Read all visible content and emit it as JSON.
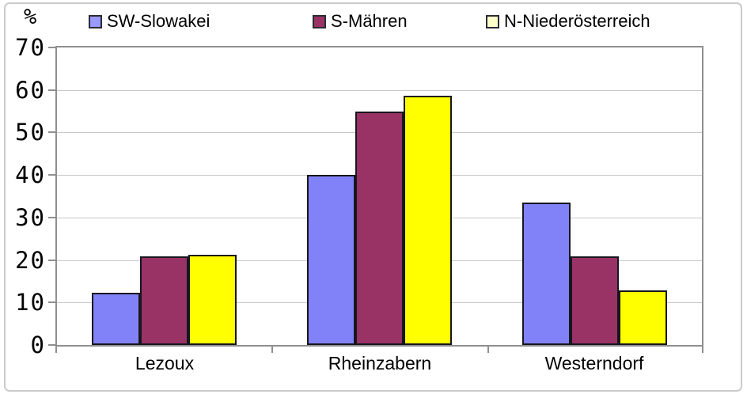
{
  "chart_data": {
    "type": "bar",
    "title": "",
    "ylabel": "%",
    "xlabel": "",
    "categories": [
      "Lezoux",
      "Rheinzabern",
      "Westerndorf"
    ],
    "series": [
      {
        "name": "SW-Slowakei",
        "values": [
          12.3,
          40.1,
          33.5
        ],
        "bar_color": "#8282F8",
        "legend_color": "#9999FF"
      },
      {
        "name": "S-Mähren",
        "values": [
          20.9,
          54.9,
          20.9
        ],
        "bar_color": "#993366",
        "legend_color": "#993366"
      },
      {
        "name": "N-Niederösterreich",
        "values": [
          21.2,
          58.6,
          12.9
        ],
        "bar_color": "#FFFF00",
        "legend_color": "#FFFFCC"
      }
    ],
    "ylim": [
      0,
      70
    ],
    "yticks": [
      0,
      10,
      20,
      30,
      40,
      50,
      60,
      70
    ],
    "grid": true,
    "legend_position": "top"
  },
  "colors": {
    "grid": "#c8c8c8",
    "axis": "#8f8f8f",
    "bar_border": "#16161d",
    "frame_border": "#cbcbcb",
    "background": "#ffffff"
  }
}
